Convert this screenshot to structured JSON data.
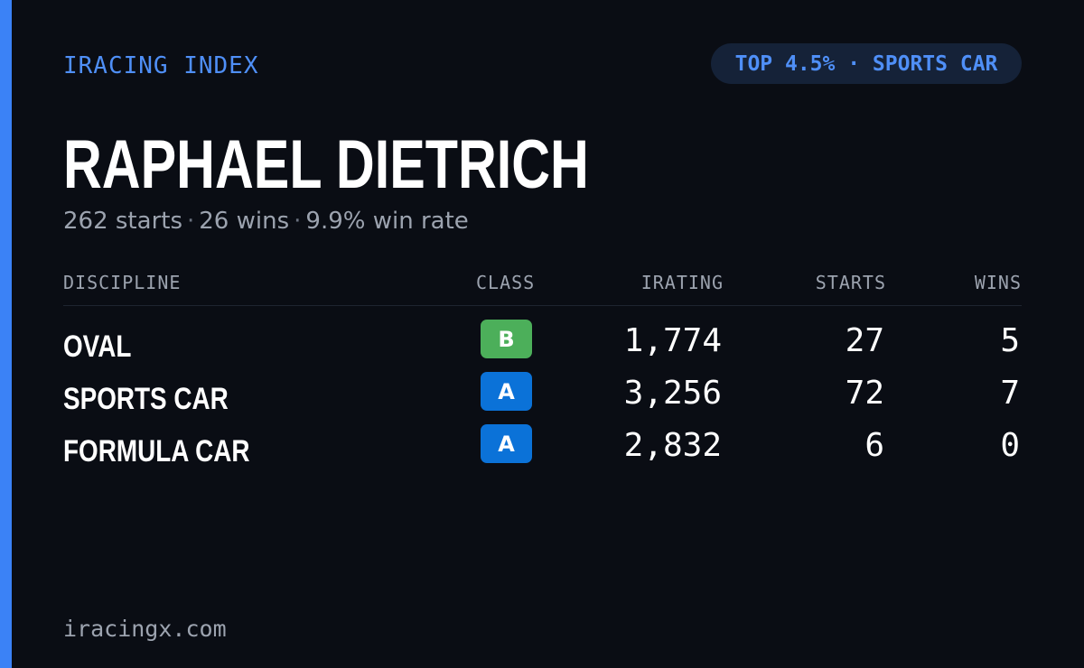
{
  "brand": "IRACING INDEX",
  "rank_badge": "TOP 4.5% · SPORTS CAR",
  "driver": {
    "name": "RAPHAEL DIETRICH",
    "starts_text": "262 starts",
    "wins_text": "26 wins",
    "win_rate_text": "9.9% win rate",
    "separator": "·"
  },
  "table": {
    "headers": {
      "discipline": "DISCIPLINE",
      "class": "CLASS",
      "irating": "IRATING",
      "starts": "STARTS",
      "wins": "WINS"
    },
    "rows": [
      {
        "discipline": "OVAL",
        "class": "B",
        "class_color": "#4caf5a",
        "irating": "1,774",
        "starts": "27",
        "wins": "5"
      },
      {
        "discipline": "SPORTS CAR",
        "class": "A",
        "class_color": "#0b72d8",
        "irating": "3,256",
        "starts": "72",
        "wins": "7"
      },
      {
        "discipline": "FORMULA CAR",
        "class": "A",
        "class_color": "#0b72d8",
        "irating": "2,832",
        "starts": "6",
        "wins": "0"
      }
    ]
  },
  "footer": "iracingx.com",
  "colors": {
    "background": "#0a0d14",
    "accent": "#3b82f6",
    "brand_text": "#4f8ff7",
    "muted_text": "#9ca3af",
    "pill_background": "#152238"
  }
}
